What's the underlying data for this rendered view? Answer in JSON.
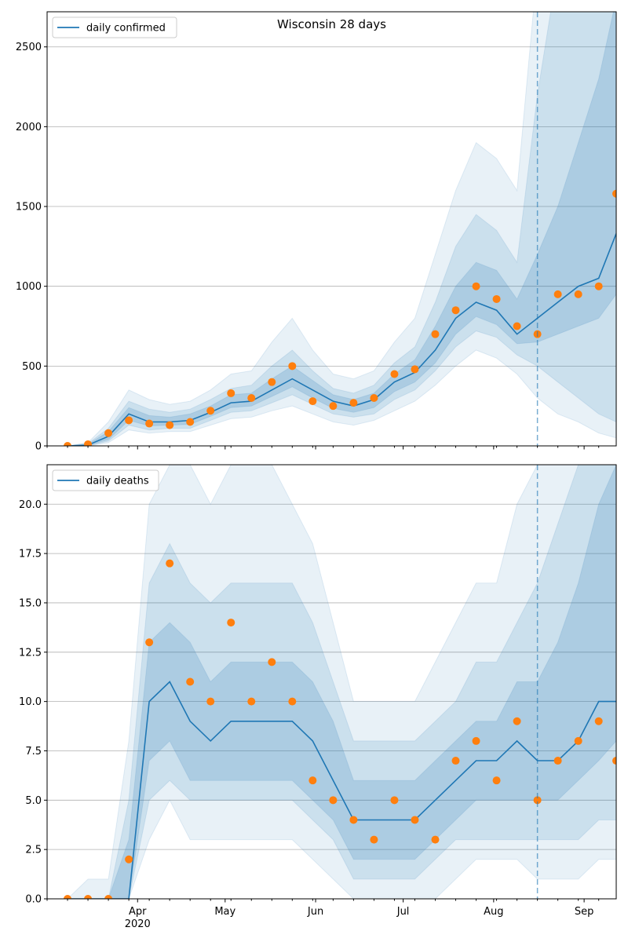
{
  "chart_data": [
    {
      "type": "line",
      "title": "Wisconsin 28 days",
      "legend": {
        "placement": "top-left",
        "entries": [
          "daily confirmed"
        ]
      },
      "series": [
        {
          "name": "daily confirmed",
          "color": "#1f77b4",
          "x": [
            "2020-03-08",
            "2020-03-15",
            "2020-03-22",
            "2020-03-29",
            "2020-04-05",
            "2020-04-12",
            "2020-04-19",
            "2020-04-26",
            "2020-05-03",
            "2020-05-10",
            "2020-05-17",
            "2020-05-24",
            "2020-05-31",
            "2020-06-07",
            "2020-06-14",
            "2020-06-21",
            "2020-06-28",
            "2020-07-05",
            "2020-07-12",
            "2020-07-19",
            "2020-07-26",
            "2020-08-02",
            "2020-08-09",
            "2020-08-16",
            "2020-08-23",
            "2020-08-30",
            "2020-09-06",
            "2020-09-12"
          ],
          "values": [
            0,
            5,
            60,
            200,
            150,
            150,
            160,
            210,
            270,
            280,
            350,
            420,
            350,
            280,
            250,
            290,
            400,
            460,
            600,
            800,
            900,
            850,
            700,
            800,
            900,
            1000,
            1050,
            1330
          ]
        }
      ],
      "observed": {
        "color": "#ff7f0e",
        "x": [
          "2020-03-08",
          "2020-03-15",
          "2020-03-22",
          "2020-03-29",
          "2020-04-05",
          "2020-04-12",
          "2020-04-19",
          "2020-04-26",
          "2020-05-03",
          "2020-05-10",
          "2020-05-17",
          "2020-05-24",
          "2020-05-31",
          "2020-06-07",
          "2020-06-14",
          "2020-06-21",
          "2020-06-28",
          "2020-07-05",
          "2020-07-12",
          "2020-07-19",
          "2020-07-26",
          "2020-08-02",
          "2020-08-09",
          "2020-08-16",
          "2020-08-23",
          "2020-08-30",
          "2020-09-06",
          "2020-09-12"
        ],
        "values": [
          0,
          10,
          80,
          160,
          140,
          130,
          150,
          220,
          330,
          300,
          400,
          500,
          280,
          250,
          270,
          300,
          450,
          480,
          700,
          850,
          1000,
          920,
          750,
          700,
          950,
          950,
          1000,
          1580
        ]
      },
      "bands": {
        "color": "#1f77b4",
        "levels": [
          {
            "lower": [
              0,
              0,
              20,
              100,
              80,
              90,
              90,
              130,
              170,
              180,
              220,
              250,
              200,
              150,
              130,
              160,
              220,
              280,
              380,
              500,
              600,
              550,
              450,
              300,
              200,
              150,
              80,
              50
            ],
            "upper": [
              0,
              20,
              150,
              350,
              290,
              260,
              280,
              350,
              450,
              470,
              650,
              800,
              600,
              450,
              420,
              470,
              650,
              800,
              1200,
              1600,
              1900,
              1800,
              1600,
              3000,
              3000,
              3000,
              3000,
              3000
            ]
          },
          {
            "lower": [
              0,
              0,
              30,
              130,
              100,
              110,
              110,
              160,
              210,
              220,
              270,
              320,
              260,
              200,
              180,
              200,
              290,
              350,
              470,
              620,
              720,
              680,
              570,
              500,
              400,
              300,
              200,
              150
            ],
            "upper": [
              0,
              15,
              110,
              280,
              230,
              210,
              230,
              290,
              360,
              380,
              500,
              600,
              470,
              360,
              330,
              380,
              520,
              620,
              900,
              1250,
              1450,
              1350,
              1150,
              2200,
              3000,
              3000,
              3000,
              3000
            ]
          },
          {
            "lower": [
              0,
              2,
              40,
              160,
              125,
              130,
              135,
              185,
              240,
              250,
              310,
              370,
              300,
              235,
              210,
              240,
              340,
              400,
              520,
              700,
              810,
              760,
              640,
              650,
              700,
              750,
              800,
              950
            ],
            "upper": [
              0,
              10,
              90,
              240,
              190,
              180,
              200,
              250,
              320,
              330,
              420,
              500,
              410,
              320,
              290,
              330,
              450,
              540,
              750,
              1000,
              1150,
              1100,
              920,
              1200,
              1500,
              1900,
              2300,
              2800
            ]
          }
        ]
      },
      "forecast_start": "2020-08-16",
      "xlim": [
        "2020-03-01",
        "2020-09-12"
      ],
      "ylim": [
        0,
        2720
      ],
      "yticks": [
        0,
        500,
        1000,
        1500,
        2000,
        2500
      ],
      "grid": "horizontal"
    },
    {
      "type": "line",
      "title": "",
      "legend": {
        "placement": "top-left",
        "entries": [
          "daily deaths"
        ]
      },
      "series": [
        {
          "name": "daily deaths",
          "color": "#1f77b4",
          "x": [
            "2020-03-08",
            "2020-03-15",
            "2020-03-22",
            "2020-03-29",
            "2020-04-05",
            "2020-04-12",
            "2020-04-19",
            "2020-04-26",
            "2020-05-03",
            "2020-05-10",
            "2020-05-17",
            "2020-05-24",
            "2020-05-31",
            "2020-06-07",
            "2020-06-14",
            "2020-06-21",
            "2020-06-28",
            "2020-07-05",
            "2020-07-12",
            "2020-07-19",
            "2020-07-26",
            "2020-08-02",
            "2020-08-09",
            "2020-08-16",
            "2020-08-23",
            "2020-08-30",
            "2020-09-06",
            "2020-09-12"
          ],
          "values": [
            0,
            0,
            0,
            0,
            10,
            11,
            9,
            8,
            9,
            9,
            9,
            9,
            8,
            6,
            4,
            4,
            4,
            4,
            5,
            6,
            7,
            7,
            8,
            7,
            7,
            8,
            10,
            10
          ]
        }
      ],
      "observed": {
        "color": "#ff7f0e",
        "x": [
          "2020-03-08",
          "2020-03-15",
          "2020-03-22",
          "2020-03-29",
          "2020-04-05",
          "2020-04-12",
          "2020-04-19",
          "2020-04-26",
          "2020-05-03",
          "2020-05-10",
          "2020-05-17",
          "2020-05-24",
          "2020-05-31",
          "2020-06-07",
          "2020-06-14",
          "2020-06-21",
          "2020-06-28",
          "2020-07-05",
          "2020-07-12",
          "2020-07-19",
          "2020-07-26",
          "2020-08-02",
          "2020-08-09",
          "2020-08-16",
          "2020-08-23",
          "2020-08-30",
          "2020-09-06",
          "2020-09-12"
        ],
        "values": [
          0,
          0,
          0,
          2,
          13,
          17,
          11,
          10,
          14,
          10,
          12,
          10,
          6,
          5,
          4,
          3,
          5,
          4,
          3,
          7,
          8,
          6,
          9,
          5,
          7,
          8,
          9,
          7
        ]
      },
      "bands": {
        "color": "#1f77b4",
        "levels": [
          {
            "lower": [
              0,
              0,
              0,
              0,
              3,
              5,
              3,
              3,
              3,
              3,
              3,
              3,
              2,
              1,
              0,
              0,
              0,
              0,
              0,
              1,
              2,
              2,
              2,
              1,
              1,
              1,
              2,
              2
            ],
            "upper": [
              0,
              1,
              1,
              8,
              20,
              22,
              22,
              20,
              22,
              22,
              22,
              20,
              18,
              14,
              10,
              10,
              10,
              10,
              12,
              14,
              16,
              16,
              20,
              22,
              22,
              22,
              22,
              22
            ]
          },
          {
            "lower": [
              0,
              0,
              0,
              0,
              5,
              6,
              5,
              5,
              5,
              5,
              5,
              5,
              4,
              3,
              1,
              1,
              1,
              1,
              2,
              3,
              3,
              3,
              3,
              3,
              3,
              3,
              4,
              4
            ],
            "upper": [
              0,
              0,
              0,
              5,
              16,
              18,
              16,
              15,
              16,
              16,
              16,
              16,
              14,
              11,
              8,
              8,
              8,
              8,
              9,
              10,
              12,
              12,
              14,
              16,
              19,
              22,
              22,
              22
            ]
          },
          {
            "lower": [
              0,
              0,
              0,
              0,
              7,
              8,
              6,
              6,
              6,
              6,
              6,
              6,
              5,
              4,
              2,
              2,
              2,
              2,
              3,
              4,
              5,
              5,
              5,
              5,
              5,
              6,
              7,
              8
            ],
            "upper": [
              0,
              0,
              0,
              3,
              13,
              14,
              13,
              11,
              12,
              12,
              12,
              12,
              11,
              9,
              6,
              6,
              6,
              6,
              7,
              8,
              9,
              9,
              11,
              11,
              13,
              16,
              20,
              22
            ]
          }
        ]
      },
      "forecast_start": "2020-08-16",
      "xlim": [
        "2020-03-01",
        "2020-09-12"
      ],
      "ylim": [
        0,
        22
      ],
      "yticks": [
        0.0,
        2.5,
        5.0,
        7.5,
        10.0,
        12.5,
        15.0,
        17.5,
        20.0
      ],
      "ytick_labels": [
        "0.0",
        "2.5",
        "5.0",
        "7.5",
        "10.0",
        "12.5",
        "15.0",
        "17.5",
        "20.0"
      ],
      "xticks": [
        "2020-04-01",
        "2020-05-01",
        "2020-06-01",
        "2020-07-01",
        "2020-08-01",
        "2020-09-01"
      ],
      "xtick_labels": [
        "Apr",
        "May",
        "Jun",
        "Jul",
        "Aug",
        "Sep"
      ],
      "xtick_year_label": "2020",
      "grid": "horizontal"
    }
  ]
}
